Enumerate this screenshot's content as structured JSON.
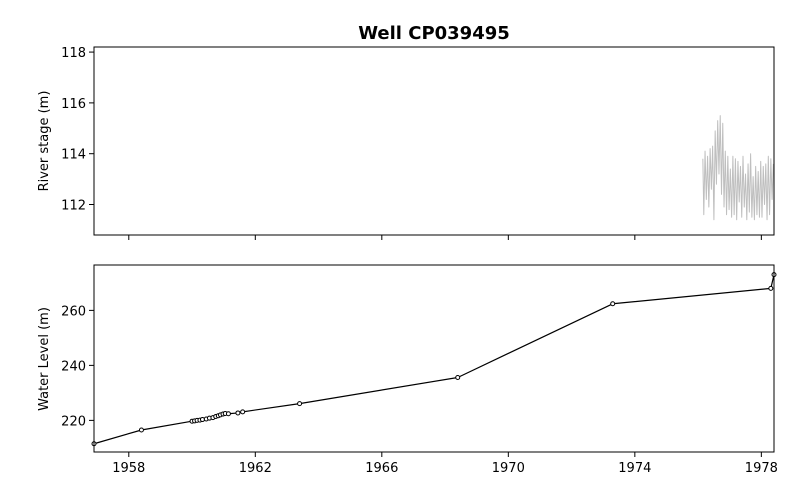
{
  "chart_data": [
    {
      "type": "line",
      "title": "Well CP039495",
      "xlabel": "",
      "ylabel": "River stage (m)",
      "xlim": [
        1956.9,
        1978.4
      ],
      "ylim": [
        110.8,
        118.2
      ],
      "yticks": [
        112,
        114,
        116,
        118
      ],
      "xticks": [
        1958,
        1962,
        1966,
        1970,
        1974,
        1978
      ],
      "x_tick_labels_shown": false,
      "grid": false,
      "legend": "none",
      "colors": {
        "line": "#bfbfbf"
      },
      "series": [
        {
          "x": [
            1976.15,
            1976.18,
            1976.22,
            1976.26,
            1976.3,
            1976.34,
            1976.38,
            1976.42,
            1976.46,
            1976.5,
            1976.54,
            1976.58,
            1976.62,
            1976.66,
            1976.7,
            1976.74,
            1976.78,
            1976.82,
            1976.86,
            1976.9,
            1976.94,
            1976.98,
            1977.02,
            1977.06,
            1977.1,
            1977.14,
            1977.18,
            1977.22,
            1977.26,
            1977.3,
            1977.34,
            1977.38,
            1977.42,
            1977.46,
            1977.5,
            1977.54,
            1977.58,
            1977.62,
            1977.66,
            1977.7,
            1977.74,
            1977.78,
            1977.82,
            1977.86,
            1977.9,
            1977.94,
            1977.98,
            1978.02,
            1978.06,
            1978.1,
            1978.14,
            1978.18,
            1978.22,
            1978.26,
            1978.3,
            1978.34,
            1978.38
          ],
          "y": [
            113.8,
            111.6,
            114.1,
            112.2,
            113.9,
            111.9,
            114.2,
            112.6,
            114.3,
            111.4,
            114.9,
            112.8,
            115.3,
            113.2,
            115.5,
            112.4,
            115.2,
            111.9,
            114.1,
            111.6,
            113.9,
            111.8,
            113.4,
            111.5,
            113.9,
            111.6,
            113.8,
            111.4,
            113.7,
            112.1,
            113.5,
            111.5,
            113.9,
            111.9,
            113.2,
            111.4,
            113.6,
            111.7,
            114.0,
            111.5,
            113.1,
            111.4,
            113.5,
            111.6,
            113.3,
            111.5,
            113.7,
            111.5,
            113.5,
            112.0,
            113.6,
            111.4,
            113.9,
            111.6,
            113.8,
            112.2,
            113.6
          ]
        }
      ]
    },
    {
      "type": "line",
      "title": "",
      "xlabel": "",
      "ylabel": "Water Level (m)",
      "xlim": [
        1956.9,
        1978.4
      ],
      "ylim": [
        208.5,
        276.5
      ],
      "yticks": [
        220,
        240,
        260
      ],
      "xticks": [
        1958,
        1962,
        1966,
        1970,
        1974,
        1978
      ],
      "xtick_labels": [
        "1958",
        "1962",
        "1966",
        "1970",
        "1974",
        "1978"
      ],
      "grid": false,
      "legend": "none",
      "markers": "open-circle",
      "colors": {
        "line": "#000000"
      },
      "series": [
        {
          "x": [
            1956.9,
            1958.4,
            1960.0,
            1960.08,
            1960.16,
            1960.25,
            1960.33,
            1960.45,
            1960.55,
            1960.66,
            1960.75,
            1960.83,
            1960.9,
            1960.98,
            1961.05,
            1961.15,
            1961.45,
            1961.6,
            1963.4,
            1968.4,
            1973.3,
            1978.3,
            1978.4
          ],
          "y": [
            211.5,
            216.5,
            219.7,
            219.8,
            220.0,
            220.1,
            220.3,
            220.5,
            220.8,
            221.0,
            221.4,
            221.7,
            222.0,
            222.3,
            222.5,
            222.4,
            222.7,
            223.1,
            226.1,
            235.6,
            262.4,
            268.0,
            273.0
          ]
        }
      ]
    }
  ]
}
